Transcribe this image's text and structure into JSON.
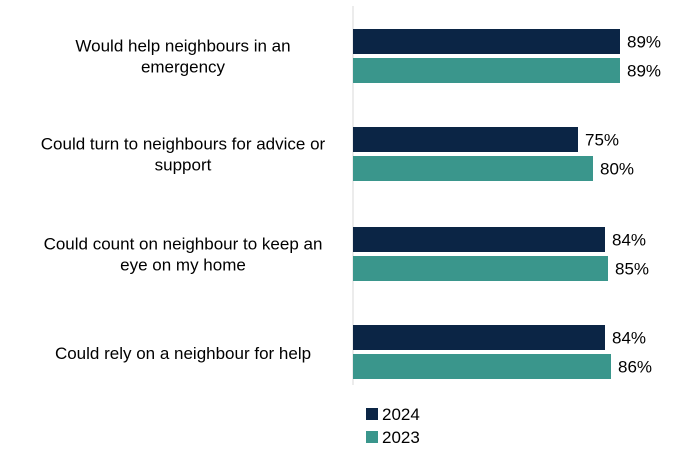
{
  "chart_data": {
    "type": "bar",
    "orientation": "horizontal",
    "categories": [
      [
        "Would help neighbours in an",
        "emergency"
      ],
      [
        "Could turn to neighbours for advice or",
        "support"
      ],
      [
        "Could count on neighbour to keep an",
        "eye on my home"
      ],
      [
        "Could rely on a neighbour for help"
      ]
    ],
    "series": [
      {
        "name": "2024",
        "values": [
          89,
          75,
          84,
          84
        ],
        "color": "#0b2545"
      },
      {
        "name": "2023",
        "values": [
          89,
          80,
          85,
          86
        ],
        "color": "#3a968c"
      }
    ],
    "value_suffix": "%",
    "xlim": [
      0,
      100
    ],
    "grid": false,
    "legend_position": "bottom-center"
  }
}
